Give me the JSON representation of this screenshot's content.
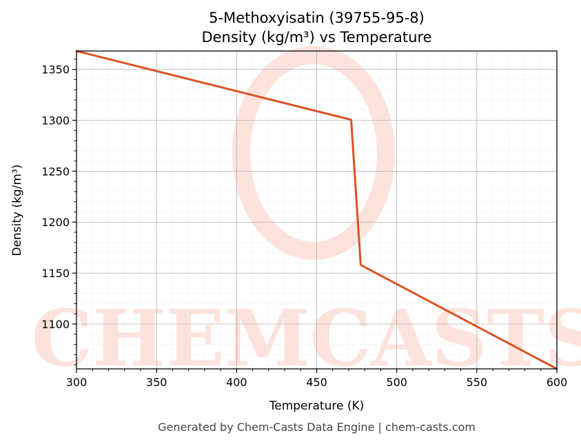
{
  "chart_data": {
    "type": "line",
    "title_line1": "5-Methoxyisatin (39755-95-8)",
    "title_line2": "Density (kg/m³) vs Temperature",
    "xlabel": "Temperature (K)",
    "ylabel": "Density (kg/m³)",
    "xlim": [
      300,
      600
    ],
    "ylim": [
      1056,
      1368
    ],
    "x_ticks": [
      300,
      350,
      400,
      450,
      500,
      550,
      600
    ],
    "y_ticks": [
      1100,
      1150,
      1200,
      1250,
      1300,
      1350
    ],
    "grid": true,
    "series": [
      {
        "color": "#d95323",
        "x": [
          300,
          471.5,
          477.5,
          600
        ],
        "y": [
          1368,
          1300.5,
          1158,
          1056
        ]
      }
    ]
  },
  "watermark": {
    "text": "CHEMCASTS",
    "color": "#fde3dc"
  },
  "footer": "Generated by Chem-Casts Data Engine | chem-casts.com"
}
